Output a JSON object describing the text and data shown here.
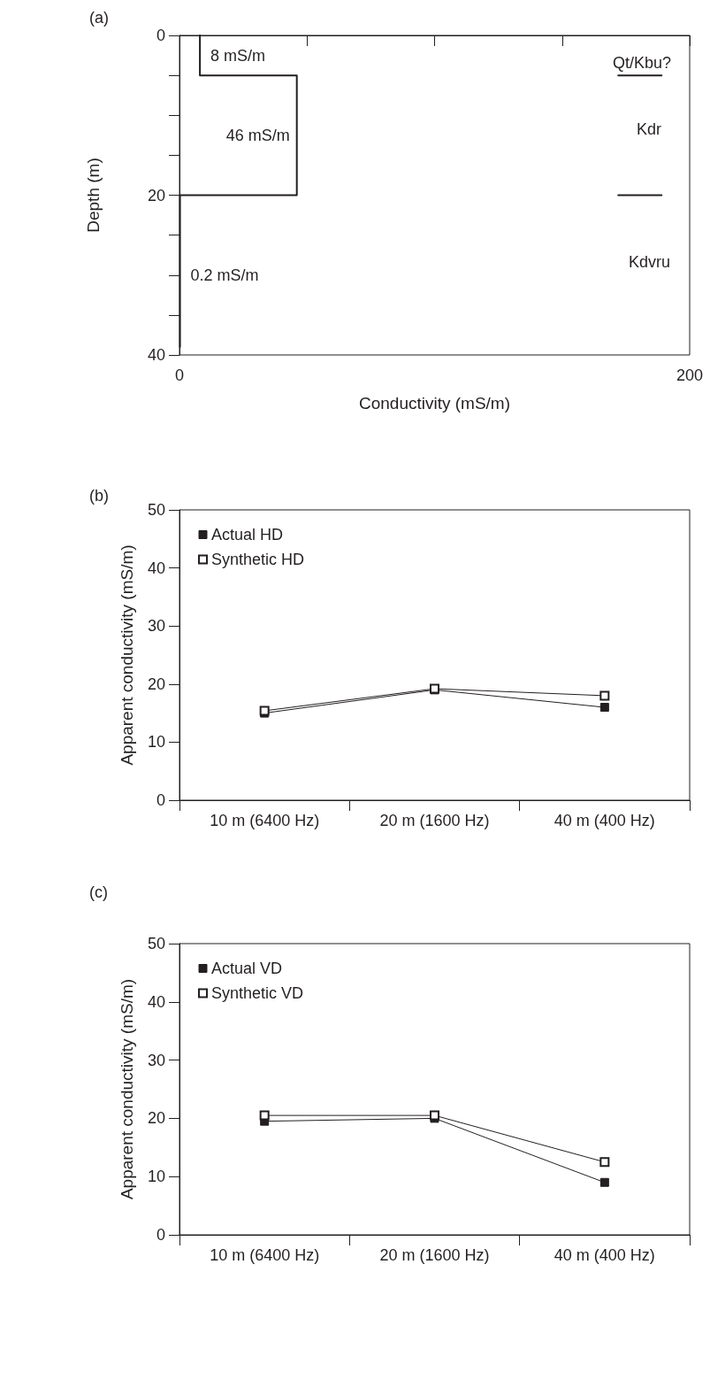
{
  "chart_data": [
    {
      "type": "line",
      "title": "(a)",
      "xlabel": "Conductivity (mS/m)",
      "ylabel": "Depth (m)",
      "xlim": [
        0,
        200
      ],
      "ylim": [
        40,
        0
      ],
      "xticks": [
        0,
        {
          "value": 50,
          "label": null
        },
        {
          "value": 100,
          "label": null
        },
        {
          "value": 150,
          "label": null
        },
        200
      ],
      "yticks": [
        0,
        {
          "value": 5,
          "label": null
        },
        {
          "value": 10,
          "label": null
        },
        {
          "value": 15,
          "label": null
        },
        20,
        {
          "value": 25,
          "label": null
        },
        {
          "value": 30,
          "label": null
        },
        {
          "value": 35,
          "label": null
        },
        40
      ],
      "series": [
        {
          "color": "#231f20",
          "x": [
            8,
            8,
            46,
            46,
            0.2,
            0.2
          ],
          "values": [
            0,
            5,
            5,
            20,
            20,
            39
          ]
        },
        {
          "color": "#231f20",
          "x": [
            172,
            189
          ],
          "values": [
            5,
            5
          ]
        },
        {
          "color": "#231f20",
          "x": [
            172,
            189
          ],
          "values": [
            20,
            20
          ]
        }
      ],
      "annotations": [
        {
          "text": "8 mS/m",
          "x": 8,
          "y": 2.5
        },
        {
          "text": "46 mS/m",
          "x": 46,
          "y": 12.5
        },
        {
          "text": "0.2 mS/m",
          "x": 0.2,
          "y": 30
        },
        "Qt/Kbu?",
        "Kdr",
        "Kdvru"
      ],
      "grid": false,
      "legend": false,
      "marker": "none",
      "line_style": "solid"
    },
    {
      "type": "line",
      "title": "(b)",
      "ylabel": "Apparent conductivity (mS/m)",
      "categories": [
        "10 m (6400 Hz)",
        "20 m (1600 Hz)",
        "40 m (400 Hz)"
      ],
      "ylim": [
        0,
        50
      ],
      "yticks": [
        0,
        10,
        20,
        30,
        40,
        50
      ],
      "series": [
        {
          "name": "Actual HD",
          "color": "#231f20",
          "values": [
            15,
            19,
            16
          ]
        },
        {
          "name": "Synthetic HD",
          "color": "#231f20",
          "values": [
            15.4,
            19.2,
            18
          ]
        }
      ],
      "grid": false,
      "legend": "top left",
      "marker": "square",
      "line_style": "solid"
    },
    {
      "type": "line",
      "title": "(c)",
      "ylabel": "Apparent conductivity (mS/m)",
      "categories": [
        "10 m (6400 Hz)",
        "20 m (1600 Hz)",
        "40 m (400 Hz)"
      ],
      "ylim": [
        0,
        50
      ],
      "yticks": [
        0,
        10,
        20,
        30,
        40,
        50
      ],
      "series": [
        {
          "name": "Actual VD",
          "color": "#231f20",
          "values": [
            19.5,
            20,
            9
          ]
        },
        {
          "name": "Synthetic VD",
          "color": "#231f20",
          "values": [
            20.5,
            20.5,
            12.5
          ]
        }
      ],
      "grid": false,
      "legend": "top left",
      "marker": "square",
      "line_style": "solid"
    }
  ]
}
